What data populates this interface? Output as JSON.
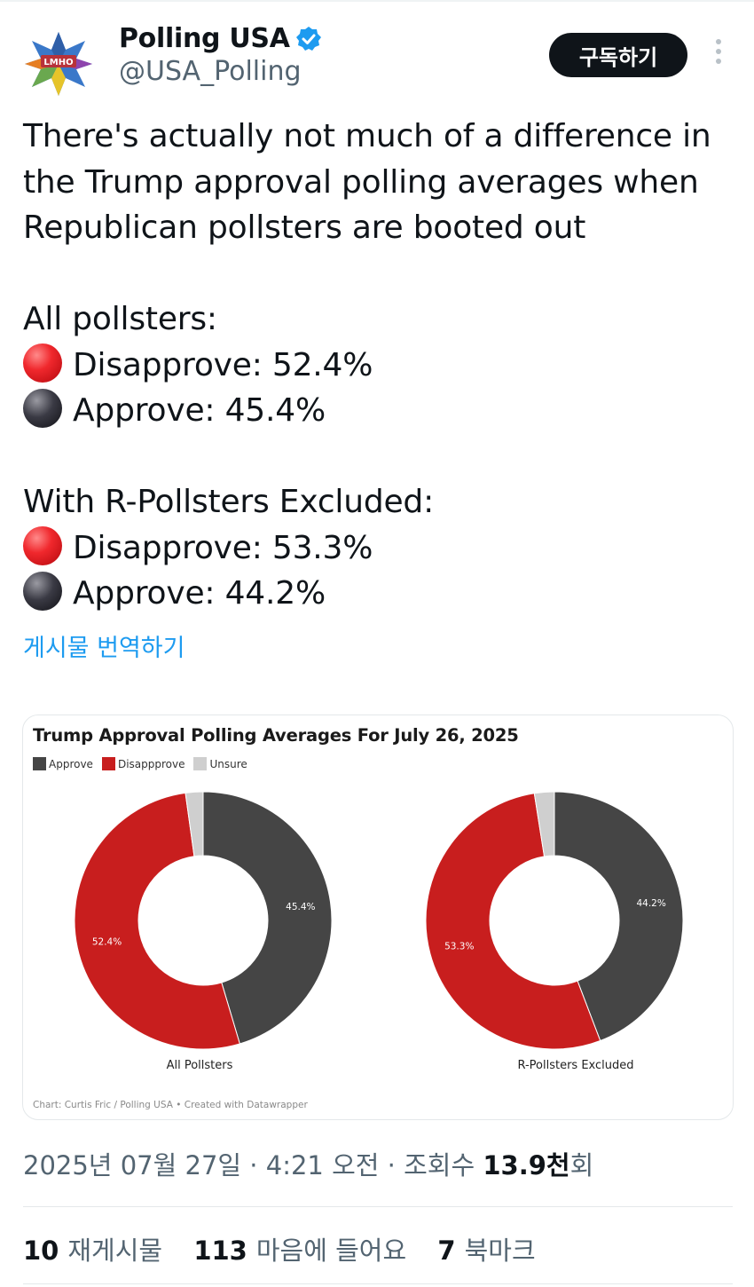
{
  "author": {
    "name": "Polling USA",
    "handle": "@USA_Polling",
    "avatar_text": "LMHO"
  },
  "actions": {
    "subscribe_label": "구독하기"
  },
  "tweet": {
    "intro": [
      "There's actually not much of a difference in",
      "the Trump approval polling averages when",
      "Republican pollsters are booted out"
    ],
    "section1_title": "All pollsters:",
    "section1_disapprove": "Disapprove: 52.4%",
    "section1_approve": "Approve: 45.4%",
    "section2_title": "With R-Pollsters Excluded:",
    "section2_disapprove": "Disapprove: 53.3%",
    "section2_approve": "Approve: 44.2%",
    "translate_label": "게시물 번역하기"
  },
  "chart_data": {
    "type": "pie",
    "title": "Trump Approval Polling Averages For July 26, 2025",
    "legend": [
      "Approve",
      "Disappprove",
      "Unsure"
    ],
    "colors": {
      "Approve": "#454545",
      "Disapprove": "#c81e1e",
      "Unsure": "#cfcfcf"
    },
    "credit": "Chart: Curtis Fric / Polling USA • Created with Datawrapper",
    "charts": [
      {
        "label": "All Pollsters",
        "approve": 45.4,
        "disapprove": 52.4,
        "unsure": 2.2,
        "approve_label": "45.4%",
        "disapprove_label": "52.4%"
      },
      {
        "label": "R-Pollsters Excluded",
        "approve": 44.2,
        "disapprove": 53.3,
        "unsure": 2.5,
        "approve_label": "44.2%",
        "disapprove_label": "53.3%"
      }
    ]
  },
  "meta": {
    "date": "2025년 07월 27일 · 4:21 오전 · 조회수 ",
    "views": "13.9천",
    "views_suffix": "회"
  },
  "stats": {
    "reposts_count": "10",
    "reposts_label": "재게시물",
    "likes_count": "113",
    "likes_label": "마음에 들어요",
    "bookmarks_count": "7",
    "bookmarks_label": "북마크"
  }
}
